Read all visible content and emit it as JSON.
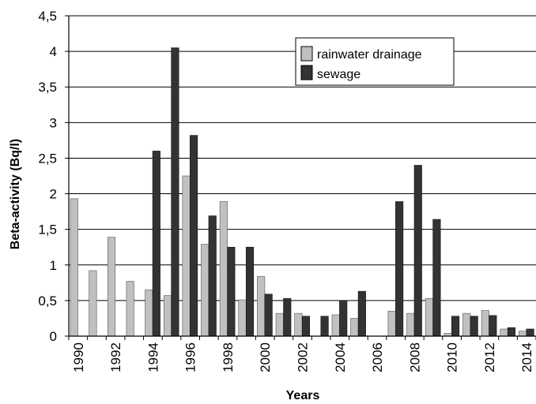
{
  "chart_data": {
    "type": "bar",
    "title": "",
    "xlabel": "Years",
    "ylabel": "Beta-activity (Bq/l)",
    "ylim": [
      0,
      4.5
    ],
    "y_ticks": [
      "0",
      "0,5",
      "1",
      "1,5",
      "2",
      "2,5",
      "3",
      "3,5",
      "4",
      "4,5"
    ],
    "grid": true,
    "legend_position": "top-right",
    "categories": [
      "1990",
      "1991",
      "1992",
      "1993",
      "1994",
      "1995",
      "1996",
      "1997",
      "1998",
      "1999",
      "2000",
      "2001",
      "2002",
      "2003",
      "2004",
      "2005",
      "2006",
      "2007",
      "2008",
      "2009",
      "2010",
      "2011",
      "2012",
      "2013",
      "2014"
    ],
    "x_tick_labels": [
      "1990",
      "",
      "1992",
      "",
      "1994",
      "",
      "1996",
      "",
      "1998",
      "",
      "2000",
      "",
      "2002",
      "",
      "2004",
      "",
      "2006",
      "",
      "2008",
      "",
      "2010",
      "",
      "2012",
      "",
      "2014"
    ],
    "series": [
      {
        "name": "rainwater drainage",
        "color": "#c0c0c0",
        "values": [
          1.93,
          0.92,
          1.39,
          0.77,
          0.65,
          0.57,
          2.25,
          1.29,
          1.89,
          0.51,
          0.84,
          0.32,
          0.32,
          null,
          0.3,
          0.25,
          null,
          0.35,
          0.32,
          0.53,
          0.04,
          0.32,
          0.36,
          0.1,
          0.07
        ]
      },
      {
        "name": "sewage",
        "color": "#333333",
        "values": [
          null,
          null,
          null,
          null,
          2.6,
          4.05,
          2.82,
          1.69,
          1.25,
          1.25,
          0.59,
          0.53,
          0.28,
          0.28,
          0.5,
          0.63,
          null,
          1.89,
          2.4,
          1.64,
          0.28,
          0.28,
          0.29,
          0.12,
          0.1
        ]
      }
    ]
  }
}
